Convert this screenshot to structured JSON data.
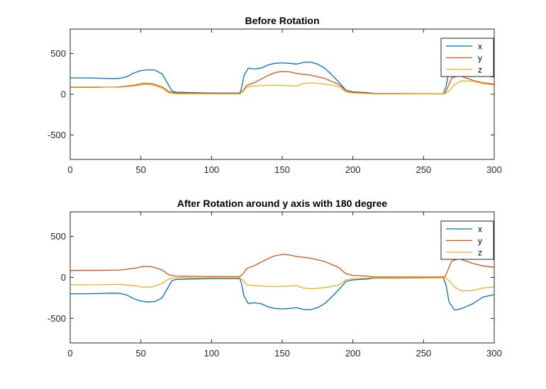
{
  "chart_data": [
    {
      "type": "line",
      "title": "Before Rotation",
      "xlabel": "",
      "ylabel": "",
      "xlim": [
        0,
        300
      ],
      "ylim": [
        -800,
        800
      ],
      "xticks": [
        0,
        50,
        100,
        150,
        200,
        250,
        300
      ],
      "yticks": [
        -500,
        0,
        500
      ],
      "grid": false,
      "legend_position": "top-right",
      "series": [
        {
          "name": "x",
          "color": "#0072BD",
          "points": [
            [
              0,
              200
            ],
            [
              10,
              200
            ],
            [
              20,
              197
            ],
            [
              30,
              192
            ],
            [
              35,
              195
            ],
            [
              40,
              215
            ],
            [
              45,
              260
            ],
            [
              50,
              290
            ],
            [
              55,
              300
            ],
            [
              60,
              295
            ],
            [
              65,
              250
            ],
            [
              68,
              160
            ],
            [
              72,
              40
            ],
            [
              75,
              25
            ],
            [
              85,
              20
            ],
            [
              100,
              15
            ],
            [
              110,
              15
            ],
            [
              120,
              15
            ],
            [
              121,
              60
            ],
            [
              123,
              230
            ],
            [
              126,
              320
            ],
            [
              130,
              310
            ],
            [
              135,
              320
            ],
            [
              140,
              360
            ],
            [
              145,
              380
            ],
            [
              150,
              385
            ],
            [
              155,
              380
            ],
            [
              160,
              370
            ],
            [
              165,
              390
            ],
            [
              170,
              395
            ],
            [
              175,
              370
            ],
            [
              180,
              320
            ],
            [
              185,
              240
            ],
            [
              190,
              150
            ],
            [
              195,
              50
            ],
            [
              200,
              30
            ],
            [
              210,
              20
            ],
            [
              215,
              10
            ],
            [
              230,
              10
            ],
            [
              260,
              5
            ],
            [
              264,
              5
            ],
            [
              266,
              100
            ],
            [
              268,
              300
            ],
            [
              272,
              330
            ],
            [
              277,
              300
            ],
            [
              285,
              260
            ],
            [
              292,
              230
            ],
            [
              300,
              210
            ]
          ]
        },
        {
          "name": "y",
          "color": "#D95319",
          "points": [
            [
              0,
              85
            ],
            [
              20,
              85
            ],
            [
              35,
              90
            ],
            [
              45,
              110
            ],
            [
              52,
              135
            ],
            [
              58,
              130
            ],
            [
              65,
              90
            ],
            [
              70,
              30
            ],
            [
              75,
              15
            ],
            [
              100,
              10
            ],
            [
              120,
              10
            ],
            [
              122,
              40
            ],
            [
              125,
              110
            ],
            [
              130,
              140
            ],
            [
              135,
              185
            ],
            [
              140,
              230
            ],
            [
              145,
              265
            ],
            [
              150,
              280
            ],
            [
              155,
              275
            ],
            [
              160,
              255
            ],
            [
              170,
              235
            ],
            [
              180,
              195
            ],
            [
              190,
              120
            ],
            [
              195,
              45
            ],
            [
              200,
              25
            ],
            [
              210,
              15
            ],
            [
              215,
              5
            ],
            [
              260,
              5
            ],
            [
              265,
              5
            ],
            [
              267,
              80
            ],
            [
              270,
              200
            ],
            [
              275,
              230
            ],
            [
              285,
              170
            ],
            [
              292,
              140
            ],
            [
              300,
              125
            ]
          ]
        },
        {
          "name": "z",
          "color": "#EDB120",
          "points": [
            [
              0,
              90
            ],
            [
              20,
              90
            ],
            [
              35,
              85
            ],
            [
              45,
              100
            ],
            [
              52,
              120
            ],
            [
              58,
              115
            ],
            [
              65,
              75
            ],
            [
              70,
              15
            ],
            [
              75,
              5
            ],
            [
              100,
              5
            ],
            [
              120,
              5
            ],
            [
              122,
              30
            ],
            [
              125,
              90
            ],
            [
              130,
              100
            ],
            [
              140,
              110
            ],
            [
              150,
              110
            ],
            [
              160,
              100
            ],
            [
              165,
              130
            ],
            [
              170,
              140
            ],
            [
              180,
              125
            ],
            [
              190,
              95
            ],
            [
              195,
              30
            ],
            [
              200,
              15
            ],
            [
              215,
              5
            ],
            [
              265,
              5
            ],
            [
              268,
              40
            ],
            [
              272,
              120
            ],
            [
              277,
              165
            ],
            [
              285,
              160
            ],
            [
              292,
              130
            ],
            [
              300,
              115
            ]
          ]
        }
      ]
    },
    {
      "type": "line",
      "title": "After Rotation around y axis with 180 degree",
      "xlabel": "",
      "ylabel": "",
      "xlim": [
        0,
        300
      ],
      "ylim": [
        -800,
        800
      ],
      "xticks": [
        0,
        50,
        100,
        150,
        200,
        250,
        300
      ],
      "yticks": [
        -500,
        0,
        500
      ],
      "grid": false,
      "legend_position": "top-right",
      "series": [
        {
          "name": "x",
          "color": "#0072BD",
          "points": [
            [
              0,
              -200
            ],
            [
              10,
              -200
            ],
            [
              20,
              -197
            ],
            [
              30,
              -192
            ],
            [
              35,
              -195
            ],
            [
              40,
              -215
            ],
            [
              45,
              -260
            ],
            [
              50,
              -290
            ],
            [
              55,
              -300
            ],
            [
              60,
              -295
            ],
            [
              65,
              -250
            ],
            [
              68,
              -160
            ],
            [
              72,
              -40
            ],
            [
              75,
              -25
            ],
            [
              85,
              -20
            ],
            [
              100,
              -15
            ],
            [
              110,
              -15
            ],
            [
              120,
              -15
            ],
            [
              121,
              -60
            ],
            [
              123,
              -230
            ],
            [
              126,
              -320
            ],
            [
              130,
              -310
            ],
            [
              135,
              -320
            ],
            [
              140,
              -360
            ],
            [
              145,
              -380
            ],
            [
              150,
              -385
            ],
            [
              155,
              -380
            ],
            [
              160,
              -370
            ],
            [
              165,
              -390
            ],
            [
              170,
              -395
            ],
            [
              175,
              -370
            ],
            [
              180,
              -320
            ],
            [
              185,
              -240
            ],
            [
              190,
              -150
            ],
            [
              195,
              -50
            ],
            [
              200,
              -30
            ],
            [
              210,
              -20
            ],
            [
              215,
              -10
            ],
            [
              230,
              -10
            ],
            [
              260,
              -5
            ],
            [
              264,
              -5
            ],
            [
              266,
              -100
            ],
            [
              268,
              -300
            ],
            [
              272,
              -400
            ],
            [
              277,
              -380
            ],
            [
              285,
              -320
            ],
            [
              292,
              -240
            ],
            [
              300,
              -210
            ]
          ]
        },
        {
          "name": "y",
          "color": "#D95319",
          "points": [
            [
              0,
              85
            ],
            [
              20,
              85
            ],
            [
              35,
              90
            ],
            [
              45,
              110
            ],
            [
              52,
              135
            ],
            [
              58,
              130
            ],
            [
              65,
              90
            ],
            [
              70,
              30
            ],
            [
              75,
              15
            ],
            [
              100,
              10
            ],
            [
              120,
              10
            ],
            [
              122,
              40
            ],
            [
              125,
              110
            ],
            [
              130,
              140
            ],
            [
              135,
              185
            ],
            [
              140,
              230
            ],
            [
              145,
              265
            ],
            [
              150,
              280
            ],
            [
              155,
              275
            ],
            [
              160,
              255
            ],
            [
              170,
              235
            ],
            [
              180,
              195
            ],
            [
              190,
              120
            ],
            [
              195,
              45
            ],
            [
              200,
              25
            ],
            [
              210,
              15
            ],
            [
              215,
              5
            ],
            [
              260,
              5
            ],
            [
              265,
              5
            ],
            [
              267,
              80
            ],
            [
              270,
              200
            ],
            [
              275,
              230
            ],
            [
              285,
              170
            ],
            [
              292,
              140
            ],
            [
              300,
              125
            ]
          ]
        },
        {
          "name": "z",
          "color": "#EDB120",
          "points": [
            [
              0,
              -90
            ],
            [
              20,
              -90
            ],
            [
              35,
              -85
            ],
            [
              45,
              -100
            ],
            [
              52,
              -120
            ],
            [
              58,
              -115
            ],
            [
              65,
              -75
            ],
            [
              70,
              -15
            ],
            [
              75,
              -5
            ],
            [
              100,
              -5
            ],
            [
              120,
              -5
            ],
            [
              122,
              -30
            ],
            [
              125,
              -90
            ],
            [
              130,
              -100
            ],
            [
              140,
              -110
            ],
            [
              150,
              -110
            ],
            [
              160,
              -100
            ],
            [
              165,
              -130
            ],
            [
              170,
              -140
            ],
            [
              180,
              -125
            ],
            [
              190,
              -95
            ],
            [
              195,
              -30
            ],
            [
              200,
              -15
            ],
            [
              215,
              -5
            ],
            [
              265,
              -5
            ],
            [
              268,
              -40
            ],
            [
              272,
              -120
            ],
            [
              277,
              -165
            ],
            [
              285,
              -160
            ],
            [
              292,
              -130
            ],
            [
              300,
              -115
            ]
          ]
        }
      ]
    }
  ]
}
